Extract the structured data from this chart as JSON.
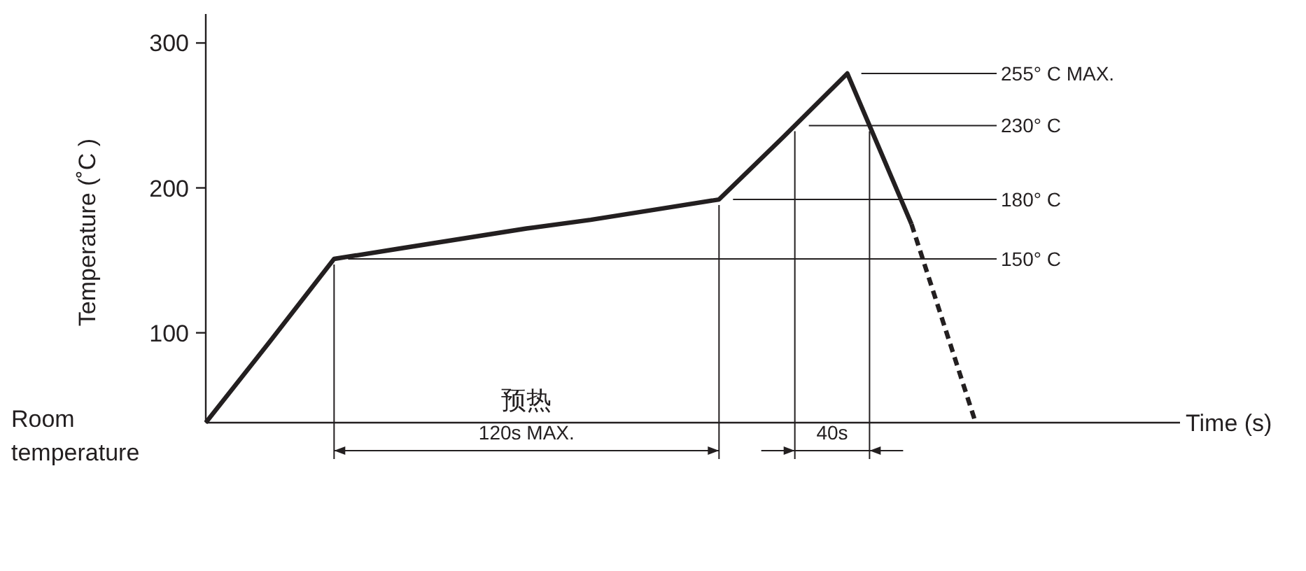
{
  "chart_data": {
    "type": "line",
    "ylabel": "Temperature (˚C )",
    "ylim": [
      38,
      320
    ],
    "yticks": [
      100,
      200,
      300
    ],
    "tick_labels": "y",
    "categories": [
      null,
      null,
      null,
      null,
      null,
      null,
      null,
      null,
      null,
      null,
      null,
      null,
      null
    ],
    "series": [
      {
        "color": "#231f20",
        "line_style": "solid",
        "values": [
          38,
          94,
          151,
          158,
          165,
          172,
          178,
          185,
          192,
          235,
          279,
          175,
          null
        ]
      },
      {
        "color": "#231f20",
        "line_style": "dashed",
        "values": [
          null,
          null,
          null,
          null,
          null,
          null,
          null,
          null,
          null,
          null,
          null,
          175,
          38
        ]
      }
    ],
    "ref_lines": [
      {
        "axis": "y",
        "value": 279,
        "label": "255° C MAX."
      },
      {
        "axis": "y",
        "value": 243,
        "label": "230° C"
      },
      {
        "axis": "y",
        "value": 192,
        "label": "180° C"
      },
      {
        "axis": "y",
        "value": 151,
        "label": "150° C"
      }
    ],
    "annotations": [
      "预热",
      "120s MAX.",
      "40s",
      "Room temperature",
      "Time (s)"
    ]
  }
}
